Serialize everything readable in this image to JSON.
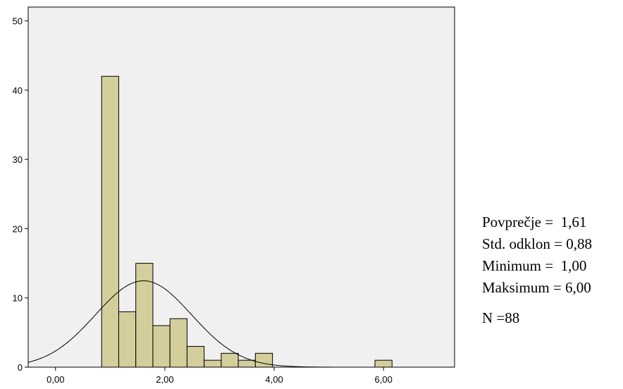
{
  "chart_data": {
    "type": "bar",
    "subtype": "histogram",
    "bin_width": 0.3125,
    "bins": [
      {
        "start": 0.84375,
        "end": 1.15625,
        "count": 42
      },
      {
        "start": 1.15625,
        "end": 1.46875,
        "count": 8
      },
      {
        "start": 1.46875,
        "end": 1.78125,
        "count": 15
      },
      {
        "start": 1.78125,
        "end": 2.09375,
        "count": 6
      },
      {
        "start": 2.09375,
        "end": 2.40625,
        "count": 7
      },
      {
        "start": 2.40625,
        "end": 2.71875,
        "count": 3
      },
      {
        "start": 2.71875,
        "end": 3.03125,
        "count": 1
      },
      {
        "start": 3.03125,
        "end": 3.34375,
        "count": 2
      },
      {
        "start": 3.34375,
        "end": 3.65625,
        "count": 1
      },
      {
        "start": 3.65625,
        "end": 3.96875,
        "count": 2
      },
      {
        "start": 5.84375,
        "end": 6.15625,
        "count": 1
      }
    ],
    "normal_curve": {
      "mean": 1.61,
      "std": 0.88,
      "n": 88
    },
    "xlim": [
      -0.5,
      7.3
    ],
    "ylim": [
      0,
      52
    ],
    "xticks": [
      {
        "value": 0,
        "label": "0,00"
      },
      {
        "value": 2,
        "label": "2,00"
      },
      {
        "value": 4,
        "label": "4,00"
      },
      {
        "value": 6,
        "label": "6,00"
      }
    ],
    "yticks": [
      {
        "value": 0,
        "label": "0"
      },
      {
        "value": 10,
        "label": "10"
      },
      {
        "value": 20,
        "label": "20"
      },
      {
        "value": 30,
        "label": "30"
      },
      {
        "value": 40,
        "label": "40"
      },
      {
        "value": 50,
        "label": "50"
      }
    ],
    "title": "",
    "xlabel": "",
    "ylabel": "",
    "grid": false,
    "colors": {
      "plot_background": "#f0f0f0",
      "bar_fill": "#d3ce9b",
      "bar_stroke": "#000000",
      "curve": "#000000"
    }
  },
  "stats": {
    "mean_label": "Povprečje = ",
    "mean_value": "1,61",
    "std_label": "Std. odklon = ",
    "std_value": "0,88",
    "min_label": "Minimum = ",
    "min_value": "1,00",
    "max_label": "Maksimum = ",
    "max_value": "6,00",
    "n_text": "N =88"
  }
}
